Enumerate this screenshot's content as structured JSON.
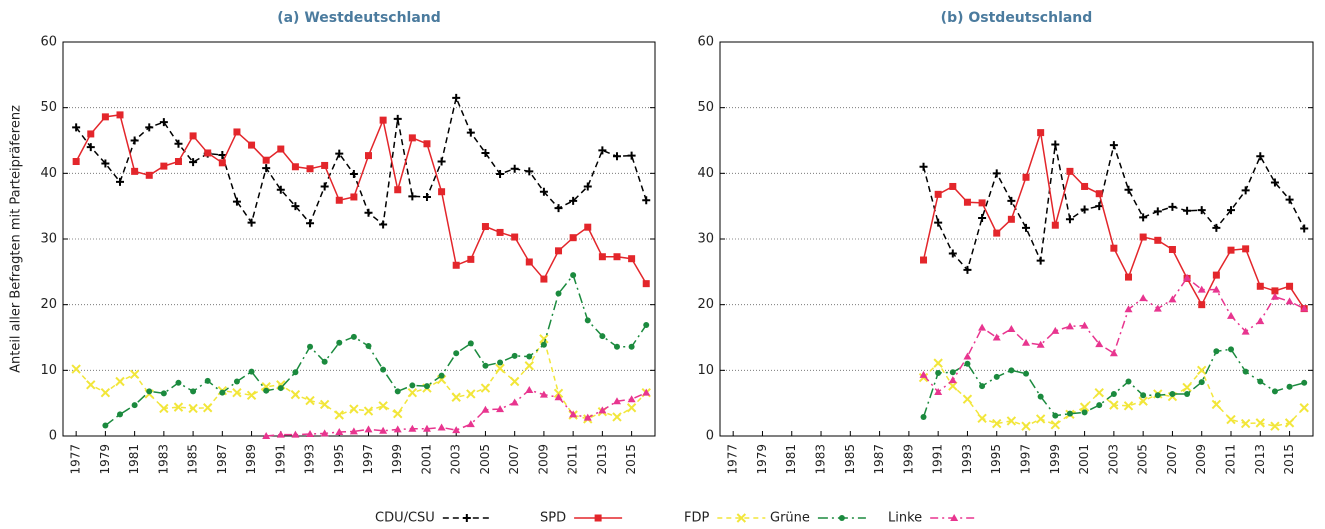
{
  "chart_data": [
    {
      "type": "line",
      "title": "(a) Westdeutschland",
      "ylabel": "Anteil aller Befragten mit Parteipräferenz",
      "x": [
        1977,
        1978,
        1979,
        1980,
        1981,
        1982,
        1983,
        1984,
        1985,
        1986,
        1987,
        1988,
        1989,
        1990,
        1991,
        1992,
        1993,
        1994,
        1995,
        1996,
        1997,
        1998,
        1999,
        2000,
        2001,
        2002,
        2003,
        2004,
        2005,
        2006,
        2007,
        2008,
        2009,
        2010,
        2011,
        2012,
        2013,
        2014,
        2015,
        2016
      ],
      "xlim": [
        1976.1,
        2016.6
      ],
      "xticks": [
        1977,
        1979,
        1981,
        1983,
        1985,
        1987,
        1989,
        1991,
        1993,
        1995,
        1997,
        1999,
        2001,
        2003,
        2005,
        2007,
        2009,
        2011,
        2013,
        2015
      ],
      "ylim": [
        0,
        60
      ],
      "yticks": [
        0,
        10,
        20,
        30,
        40,
        50,
        60
      ],
      "grid": true,
      "series": [
        {
          "name": "CDU/CSU",
          "color": "#000000",
          "dash": "6 4",
          "marker": "plus",
          "values": [
            47,
            44,
            41.5,
            38.7,
            45,
            47,
            47.8,
            44.5,
            41.7,
            43,
            42.8,
            35.7,
            32.5,
            40.8,
            37.5,
            35,
            32.4,
            38,
            43,
            39.9,
            34,
            32.2,
            48.3,
            36.5,
            36.4,
            41.8,
            51.5,
            46.2,
            43.1,
            39.9,
            40.7,
            40.3,
            37.2,
            34.7,
            35.8,
            38,
            43.5,
            42.6,
            42.7,
            35.9
          ]
        },
        {
          "name": "SPD",
          "color": "#e3262b",
          "dash": "none",
          "marker": "square",
          "values": [
            41.8,
            46,
            48.6,
            48.9,
            40.3,
            39.7,
            41.1,
            41.8,
            45.7,
            43.1,
            41.6,
            46.3,
            44.3,
            42,
            43.7,
            41,
            40.7,
            41.2,
            35.9,
            36.4,
            42.7,
            48.1,
            37.5,
            45.4,
            44.5,
            37.2,
            26,
            26.9,
            31.9,
            31,
            30.3,
            26.5,
            23.9,
            28.2,
            30.2,
            31.8,
            27.3,
            27.3,
            27,
            23.2
          ]
        },
        {
          "name": "FDP",
          "color": "#f2e63a",
          "dash": "5 4",
          "marker": "x",
          "values": [
            10.2,
            7.8,
            6.6,
            8.3,
            9.4,
            6.4,
            4.2,
            4.4,
            4.2,
            4.3,
            6.9,
            6.6,
            6.2,
            7.5,
            7.8,
            6.3,
            5.4,
            4.8,
            3.2,
            4.1,
            3.8,
            4.6,
            3.4,
            6.6,
            7.3,
            8.6,
            5.9,
            6.4,
            7.3,
            10.3,
            8.3,
            10.7,
            14.8,
            6.5,
            3.2,
            2.6,
            3.7,
            2.9,
            4.3,
            6.6
          ]
        },
        {
          "name": "Grüne",
          "color": "#1b8a3e",
          "dash": "10 4 2 4",
          "marker": "circle",
          "values": [
            null,
            null,
            1.6,
            3.3,
            4.7,
            6.8,
            6.5,
            8.1,
            6.8,
            8.4,
            6.6,
            8.3,
            9.8,
            6.9,
            7.3,
            9.7,
            13.6,
            11.3,
            14.2,
            15.1,
            13.7,
            10.1,
            6.8,
            7.7,
            7.6,
            9.2,
            12.6,
            14.1,
            10.7,
            11.2,
            12.2,
            12.1,
            13.9,
            21.7,
            24.5,
            17.6,
            15.2,
            13.6,
            13.6,
            16.9
          ]
        },
        {
          "name": "Linke",
          "color": "#e8358f",
          "dash": "8 4 2 4",
          "marker": "triangle",
          "values": [
            null,
            null,
            null,
            null,
            null,
            null,
            null,
            null,
            null,
            null,
            null,
            null,
            null,
            0,
            0.2,
            0.2,
            0.3,
            0.4,
            0.6,
            0.7,
            1,
            0.8,
            1,
            1.1,
            1.1,
            1.3,
            0.9,
            1.8,
            4,
            4.1,
            5.1,
            7,
            6.3,
            5.9,
            3.3,
            2.8,
            3.9,
            5.3,
            5.6,
            6.6
          ]
        }
      ]
    },
    {
      "type": "line",
      "title": "(b) Ostdeutschland",
      "x": [
        1990,
        1991,
        1992,
        1993,
        1994,
        1995,
        1996,
        1997,
        1998,
        1999,
        2000,
        2001,
        2002,
        2003,
        2004,
        2005,
        2006,
        2007,
        2008,
        2009,
        2010,
        2011,
        2012,
        2013,
        2014,
        2015,
        2016
      ],
      "xlim": [
        1976.1,
        2016.6
      ],
      "xticks": [
        1977,
        1979,
        1981,
        1983,
        1985,
        1987,
        1989,
        1991,
        1993,
        1995,
        1997,
        1999,
        2001,
        2003,
        2005,
        2007,
        2009,
        2011,
        2013,
        2015
      ],
      "ylim": [
        0,
        60
      ],
      "yticks": [
        0,
        10,
        20,
        30,
        40,
        50,
        60
      ],
      "grid": true,
      "series": [
        {
          "name": "CDU/CSU",
          "color": "#000000",
          "dash": "6 4",
          "marker": "plus",
          "values": [
            41,
            32.5,
            27.8,
            25.3,
            33.2,
            40,
            35.8,
            31.7,
            26.7,
            44.4,
            33,
            34.5,
            35,
            44.3,
            37.5,
            33.3,
            34.2,
            34.9,
            34.3,
            34.4,
            31.7,
            34.4,
            37.4,
            42.6,
            38.6,
            36,
            31.6
          ]
        },
        {
          "name": "SPD",
          "color": "#e3262b",
          "dash": "none",
          "marker": "square",
          "values": [
            26.8,
            36.8,
            38,
            35.6,
            35.5,
            30.9,
            33,
            39.4,
            46.2,
            32.1,
            40.3,
            38,
            36.9,
            28.6,
            24.2,
            30.3,
            29.8,
            28.4,
            24,
            20,
            24.5,
            28.3,
            28.5,
            22.8,
            22.1,
            22.8,
            19.4
          ]
        },
        {
          "name": "FDP",
          "color": "#f2e63a",
          "dash": "5 4",
          "marker": "x",
          "values": [
            8.9,
            11.1,
            7.6,
            5.6,
            2.7,
            1.9,
            2.3,
            1.5,
            2.6,
            1.7,
            3.3,
            4.4,
            6.6,
            4.7,
            4.6,
            5.3,
            6.4,
            6,
            7.4,
            10,
            4.8,
            2.5,
            1.9,
            2,
            1.5,
            2,
            4.3
          ]
        },
        {
          "name": "Grüne",
          "color": "#1b8a3e",
          "dash": "10 4 2 4",
          "marker": "circle",
          "values": [
            2.9,
            9.6,
            9.7,
            11,
            7.6,
            9,
            10,
            9.5,
            6,
            3.1,
            3.4,
            3.6,
            4.7,
            6.4,
            8.3,
            6.2,
            6.2,
            6.4,
            6.4,
            8.2,
            12.9,
            13.2,
            9.8,
            8.3,
            6.8,
            7.5,
            8.1
          ]
        },
        {
          "name": "Linke",
          "color": "#e8358f",
          "dash": "8 4 2 4",
          "marker": "triangle",
          "values": [
            9.3,
            6.7,
            8.5,
            12.1,
            16.5,
            15,
            16.3,
            14.2,
            13.9,
            16,
            16.7,
            16.8,
            14,
            12.6,
            19.3,
            21,
            19.4,
            20.8,
            24.1,
            22.3,
            22.3,
            18.3,
            15.9,
            17.5,
            21.2,
            20.5,
            19.4
          ]
        }
      ]
    }
  ]
}
